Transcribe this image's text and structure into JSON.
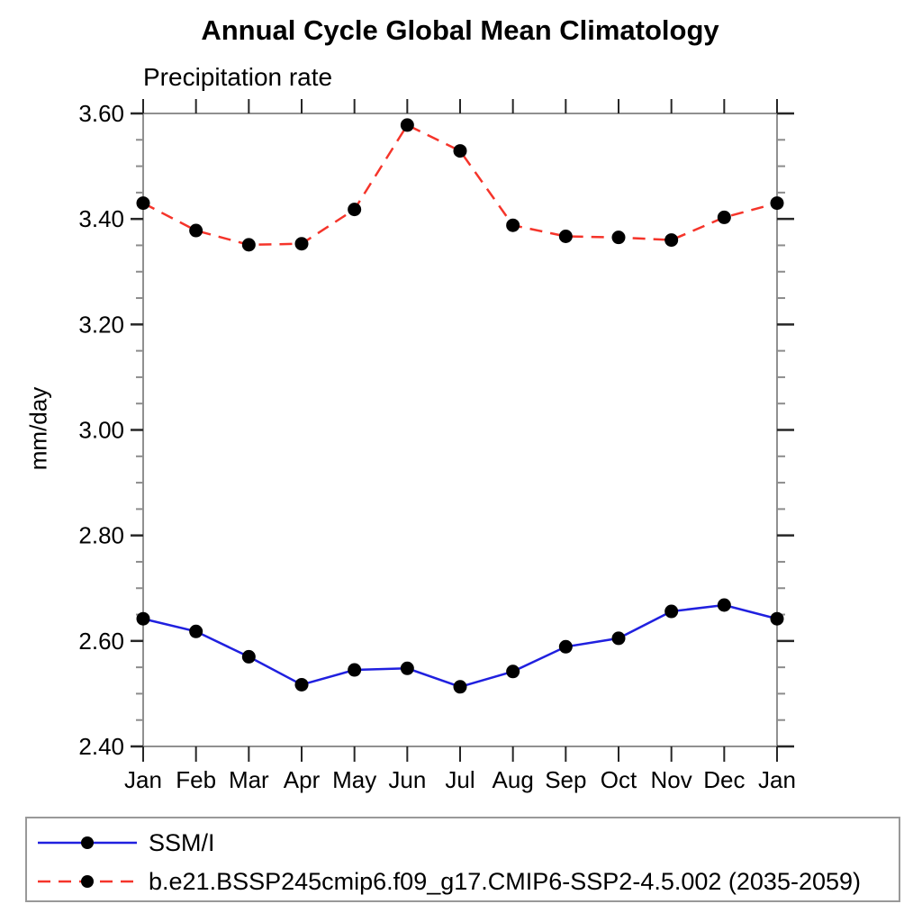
{
  "title": "Annual Cycle Global Mean Climatology",
  "subtitle": "Precipitation rate",
  "chart_data": {
    "type": "line",
    "title": "Annual Cycle Global Mean Climatology",
    "subtitle": "Precipitation rate",
    "xlabel": "",
    "ylabel": "mm/day",
    "categories": [
      "Jan",
      "Feb",
      "Mar",
      "Apr",
      "May",
      "Jun",
      "Jul",
      "Aug",
      "Sep",
      "Oct",
      "Nov",
      "Dec",
      "Jan"
    ],
    "ylim": [
      2.4,
      3.6
    ],
    "ytick_major": [
      2.4,
      2.6,
      2.8,
      3.0,
      3.2,
      3.4,
      3.6
    ],
    "ytick_labels": [
      "2.40",
      "2.60",
      "2.80",
      "3.00",
      "3.20",
      "3.40",
      "3.60"
    ],
    "ytick_minor_interval": 0.05,
    "grid": false,
    "legend_position": "bottom-left-box",
    "marker": {
      "shape": "filled-circle",
      "color": "#000000",
      "radius": 7.5
    },
    "series": [
      {
        "name": "SSM/I",
        "line_style": "solid",
        "color": "#2020df",
        "values": [
          2.642,
          2.618,
          2.57,
          2.517,
          2.545,
          2.548,
          2.513,
          2.542,
          2.589,
          2.605,
          2.656,
          2.668,
          2.642
        ]
      },
      {
        "name": "b.e21.BSSP245cmip6.f09_g17.CMIP6-SSP2-4.5.002 (2035-2059)",
        "line_style": "dashed",
        "color": "#f5342a",
        "values": [
          3.43,
          3.378,
          3.351,
          3.353,
          3.418,
          3.578,
          3.529,
          3.388,
          3.367,
          3.365,
          3.36,
          3.403,
          3.43
        ]
      }
    ]
  }
}
